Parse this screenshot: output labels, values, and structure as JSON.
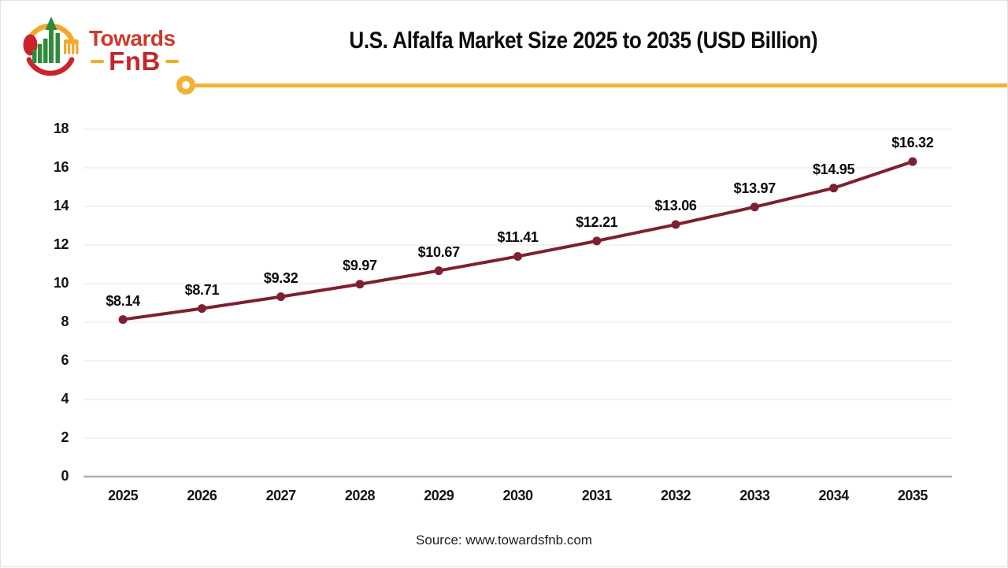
{
  "logo": {
    "towards": "Towards",
    "fnb": "FnB"
  },
  "header": {
    "title": "U.S. Alfalfa Market Size 2025 to 2035 (USD Billion)"
  },
  "footer": {
    "source": "Source: www.towardsfnb.com"
  },
  "chart_data": {
    "type": "line",
    "title": "U.S. Alfalfa Market Size 2025 to 2035 (USD Billion)",
    "unit": "USD Billion",
    "categories": [
      "2025",
      "2026",
      "2027",
      "2028",
      "2029",
      "2030",
      "2031",
      "2032",
      "2033",
      "2034",
      "2035"
    ],
    "values": [
      8.14,
      8.71,
      9.32,
      9.97,
      10.67,
      11.41,
      12.21,
      13.06,
      13.97,
      14.95,
      16.32
    ],
    "point_labels": [
      "$8.14",
      "$8.71",
      "$9.32",
      "$9.97",
      "$10.67",
      "$11.41",
      "$12.21",
      "$13.06",
      "$13.97",
      "$14.95",
      "$16.32"
    ],
    "ylim": [
      0,
      18
    ],
    "yticks": [
      0,
      2,
      4,
      6,
      8,
      10,
      12,
      14,
      16,
      18
    ],
    "grid": true,
    "legend": "none",
    "line_color": "#7E2031",
    "marker_color": "#7E2031",
    "gridline_color": "#ECECEC",
    "axis_color": "#B0B0B0",
    "accent_color": "#F2B134"
  }
}
